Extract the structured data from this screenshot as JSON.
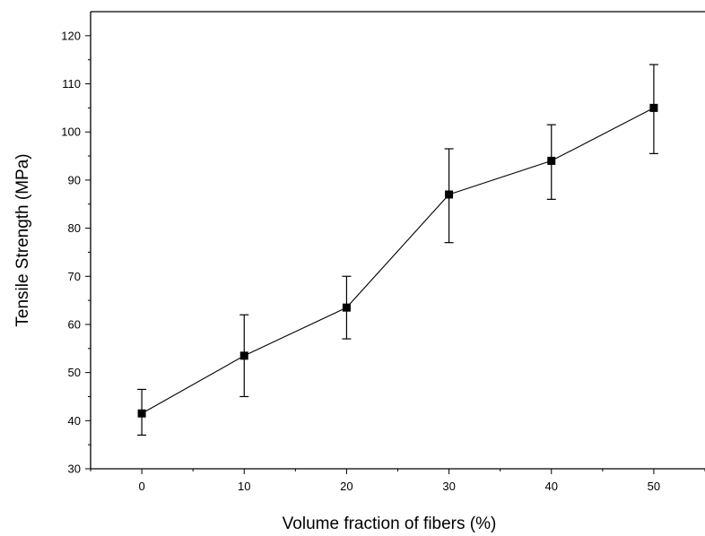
{
  "chart_data": {
    "type": "line",
    "title": "",
    "xlabel": "Volume fraction of fibers (%)",
    "ylabel": "Tensile Strength (MPa)",
    "x": [
      0,
      10,
      20,
      30,
      40,
      50
    ],
    "series": [
      {
        "values": [
          41.5,
          53.5,
          63.5,
          87,
          94,
          105
        ],
        "error_low": [
          37,
          45,
          57,
          77,
          86,
          95.5
        ],
        "error_high": [
          46.5,
          62,
          70,
          96.5,
          101.5,
          114
        ],
        "marker": "square",
        "color": "#000000"
      }
    ],
    "xlim": [
      -5,
      55
    ],
    "ylim": [
      30,
      125
    ],
    "x_ticks": [
      0,
      10,
      20,
      30,
      40,
      50
    ],
    "x_tick_labels": [
      "0",
      "10",
      "20",
      "30",
      "40",
      "50"
    ],
    "y_ticks": [
      30,
      40,
      50,
      60,
      70,
      80,
      90,
      100,
      110,
      120
    ],
    "y_tick_labels": [
      "30",
      "40",
      "50",
      "60",
      "70",
      "80",
      "90",
      "100",
      "110",
      "120"
    ],
    "grid": false,
    "legend": "none"
  }
}
